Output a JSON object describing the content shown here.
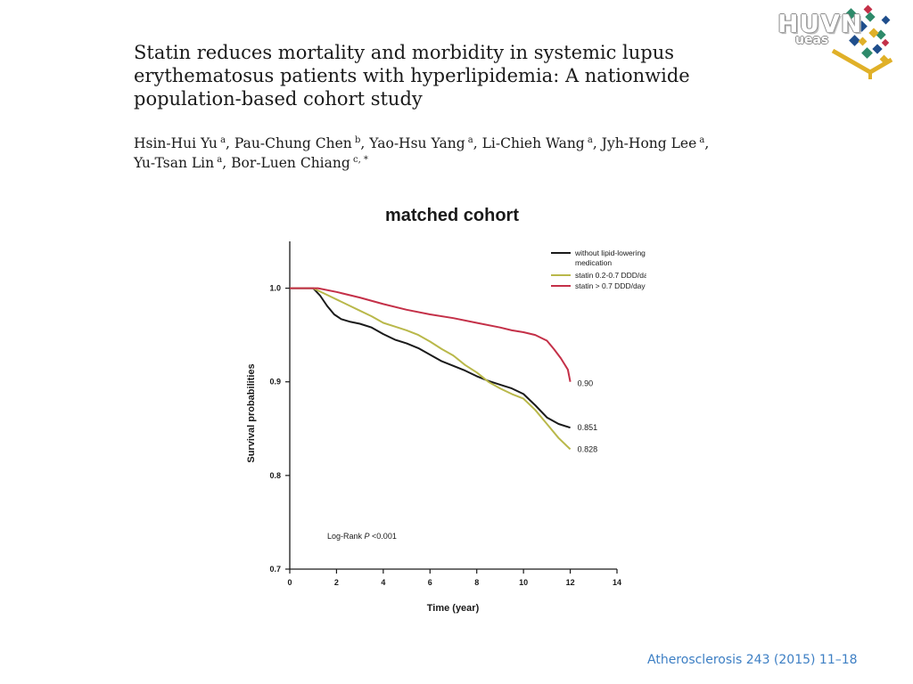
{
  "paper": {
    "title": "Statin reduces mortality and morbidity in systemic lupus erythematosus patients with hyperlipidemia: A nationwide population-based cohort study",
    "authors": [
      {
        "name": "Hsin-Hui Yu",
        "aff": "a"
      },
      {
        "name": "Pau-Chung Chen",
        "aff": "b"
      },
      {
        "name": "Yao-Hsu Yang",
        "aff": "a"
      },
      {
        "name": "Li-Chieh Wang",
        "aff": "a"
      },
      {
        "name": "Jyh-Hong Lee",
        "aff": "a"
      },
      {
        "name": "Yu-Tsan Lin",
        "aff": "a"
      },
      {
        "name": "Bor-Luen Chiang",
        "aff": "c, *"
      }
    ],
    "citation": "Atherosclerosis 243 (2015) 11–18"
  },
  "logo": {
    "text": "HUVN",
    "subtext": "ueas"
  },
  "chart_data": {
    "type": "line",
    "title": "matched cohort",
    "xlabel": "Time (year)",
    "ylabel": "Survival probabilities",
    "xlim": [
      0,
      14
    ],
    "ylim": [
      0.7,
      1.05
    ],
    "xticks": [
      0,
      2,
      4,
      6,
      8,
      10,
      12,
      14
    ],
    "yticks": [
      0.7,
      0.8,
      0.9,
      1.0
    ],
    "ytick_labels": [
      "0.7",
      "0.8",
      "0.9",
      "1.0"
    ],
    "grid": false,
    "legend_position": "top-right",
    "annotation": "Log-Rank P <0.001",
    "series": [
      {
        "name": "without lipid-lowering medication",
        "color": "#1a1a1a",
        "end_label": "0.851",
        "points": [
          [
            0,
            1.0
          ],
          [
            1.0,
            1.0
          ],
          [
            1.3,
            0.992
          ],
          [
            1.6,
            0.981
          ],
          [
            1.9,
            0.972
          ],
          [
            2.2,
            0.967
          ],
          [
            2.6,
            0.964
          ],
          [
            3.0,
            0.962
          ],
          [
            3.5,
            0.958
          ],
          [
            4.0,
            0.951
          ],
          [
            4.5,
            0.945
          ],
          [
            5.0,
            0.941
          ],
          [
            5.5,
            0.936
          ],
          [
            6.0,
            0.929
          ],
          [
            6.5,
            0.922
          ],
          [
            7.0,
            0.917
          ],
          [
            7.5,
            0.912
          ],
          [
            8.0,
            0.906
          ],
          [
            8.5,
            0.901
          ],
          [
            9.0,
            0.897
          ],
          [
            9.5,
            0.893
          ],
          [
            10.0,
            0.887
          ],
          [
            10.5,
            0.875
          ],
          [
            11.0,
            0.862
          ],
          [
            11.5,
            0.855
          ],
          [
            12.0,
            0.851
          ]
        ]
      },
      {
        "name": "statin 0.2-0.7 DDD/day",
        "color": "#b9b84a",
        "end_label": "0.828",
        "points": [
          [
            0,
            1.0
          ],
          [
            1.0,
            1.0
          ],
          [
            1.5,
            0.994
          ],
          [
            2.0,
            0.988
          ],
          [
            2.5,
            0.982
          ],
          [
            3.0,
            0.976
          ],
          [
            3.5,
            0.97
          ],
          [
            4.0,
            0.963
          ],
          [
            4.5,
            0.959
          ],
          [
            5.0,
            0.955
          ],
          [
            5.5,
            0.95
          ],
          [
            6.0,
            0.943
          ],
          [
            6.5,
            0.935
          ],
          [
            7.0,
            0.928
          ],
          [
            7.5,
            0.918
          ],
          [
            8.0,
            0.91
          ],
          [
            8.5,
            0.9
          ],
          [
            9.0,
            0.893
          ],
          [
            9.5,
            0.887
          ],
          [
            10.0,
            0.882
          ],
          [
            10.5,
            0.87
          ],
          [
            11.0,
            0.855
          ],
          [
            11.5,
            0.84
          ],
          [
            12.0,
            0.828
          ]
        ]
      },
      {
        "name": "statin > 0.7 DDD/day",
        "color": "#c43048",
        "end_label": "0.90",
        "points": [
          [
            0,
            1.0
          ],
          [
            1.2,
            1.0
          ],
          [
            2.0,
            0.996
          ],
          [
            3.0,
            0.99
          ],
          [
            4.0,
            0.983
          ],
          [
            5.0,
            0.977
          ],
          [
            6.0,
            0.972
          ],
          [
            7.0,
            0.968
          ],
          [
            8.0,
            0.963
          ],
          [
            9.0,
            0.958
          ],
          [
            9.5,
            0.955
          ],
          [
            10.0,
            0.953
          ],
          [
            10.5,
            0.95
          ],
          [
            11.0,
            0.944
          ],
          [
            11.3,
            0.935
          ],
          [
            11.6,
            0.925
          ],
          [
            11.9,
            0.913
          ],
          [
            12.0,
            0.9
          ]
        ]
      }
    ]
  }
}
